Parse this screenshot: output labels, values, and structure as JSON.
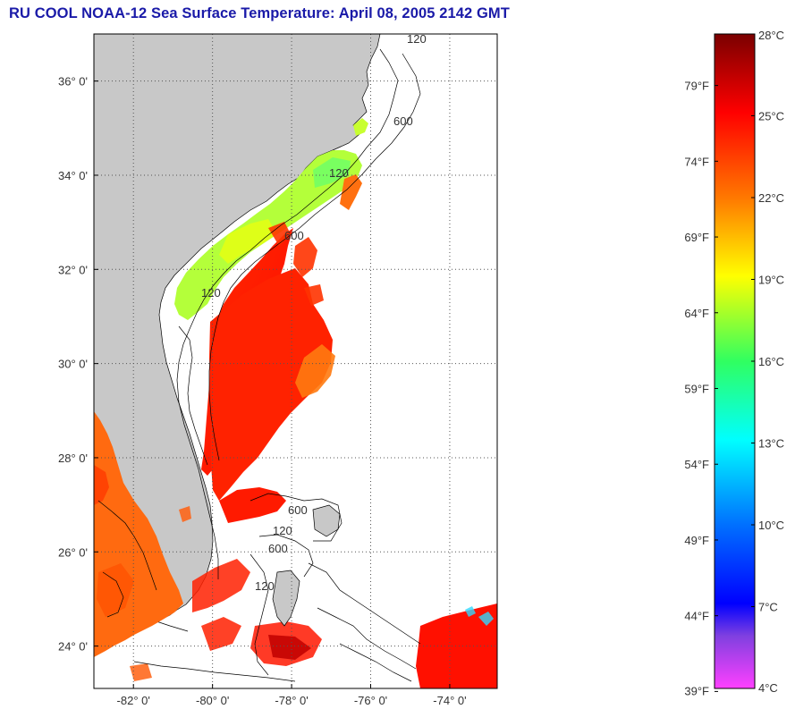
{
  "title": "RU COOL  NOAA-12  Sea Surface Temperature:  April 08, 2005 2142 GMT",
  "map": {
    "lon_range": [
      -83.0,
      -72.8
    ],
    "lat_range": [
      23.1,
      37.0
    ],
    "lat_ticks": [
      {
        "value": 24,
        "label": "24° 0'"
      },
      {
        "value": 26,
        "label": "26° 0'"
      },
      {
        "value": 28,
        "label": "28° 0'"
      },
      {
        "value": 30,
        "label": "30° 0'"
      },
      {
        "value": 32,
        "label": "32° 0'"
      },
      {
        "value": 34,
        "label": "34° 0'"
      },
      {
        "value": 36,
        "label": "36° 0'"
      }
    ],
    "lon_ticks": [
      {
        "value": -82,
        "label": "-82° 0'"
      },
      {
        "value": -80,
        "label": "-80° 0'"
      },
      {
        "value": -78,
        "label": "-78° 0'"
      },
      {
        "value": -76,
        "label": "-76° 0'"
      },
      {
        "value": -74,
        "label": "-74° 0'"
      }
    ],
    "grid": "dotted",
    "land_color": "#c8c8c8",
    "contour_labels": [
      "120",
      "600",
      "120",
      "600",
      "120",
      "600",
      "120",
      "600",
      "120"
    ]
  },
  "colorbar": {
    "range_c": [
      4,
      28
    ],
    "celsius_labels": [
      "28°C",
      "25°C",
      "22°C",
      "19°C",
      "16°C",
      "13°C",
      "10°C",
      "7°C",
      "4°C"
    ],
    "fahrenheit_labels": [
      "79°F",
      "74°F",
      "69°F",
      "64°F",
      "59°F",
      "54°F",
      "49°F",
      "44°F",
      "39°F"
    ],
    "celsius_values": [
      28,
      25,
      22,
      19,
      16,
      13,
      10,
      7,
      4
    ],
    "fahrenheit_values": [
      79,
      74,
      69,
      64,
      59,
      54,
      49,
      44,
      39
    ],
    "gradient_colors": [
      "#8b0000",
      "#ff0000",
      "#ff7f00",
      "#ffff00",
      "#00ff7f",
      "#00ffff",
      "#0080ff",
      "#0000ff",
      "#ff40ff"
    ]
  }
}
